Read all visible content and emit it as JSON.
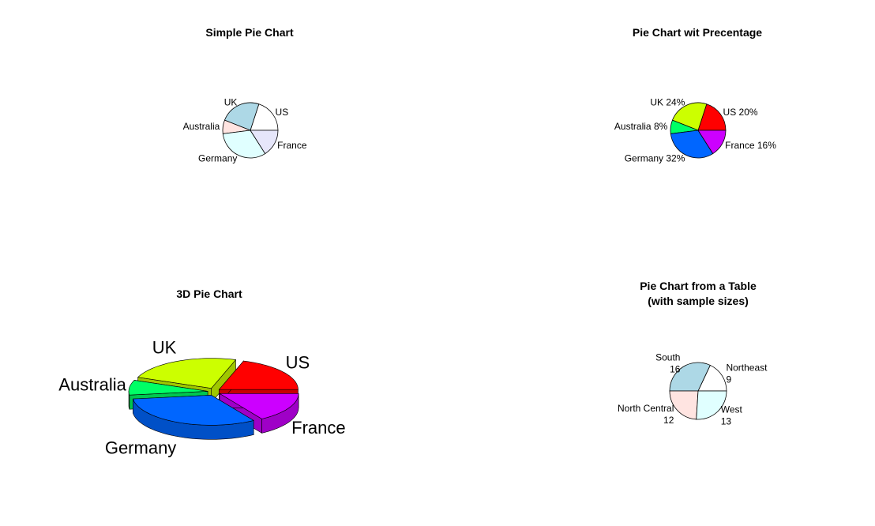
{
  "chart_data": [
    {
      "type": "pie",
      "title": "Simple Pie Chart",
      "slices": [
        {
          "label": "US",
          "value": 5,
          "color": "#ffffff"
        },
        {
          "label": "UK",
          "value": 6,
          "color": "#add8e6"
        },
        {
          "label": "Australia",
          "value": 2,
          "color": "#ffe4e1"
        },
        {
          "label": "Germany",
          "value": 8,
          "color": "#e0ffff"
        },
        {
          "label": "France",
          "value": 4,
          "color": "#e6e6fa"
        }
      ]
    },
    {
      "type": "pie",
      "title": "Pie Chart wit Precentage",
      "slices": [
        {
          "label": "US 20%",
          "value": 5,
          "color": "#ff0000"
        },
        {
          "label": "UK 24%",
          "value": 6,
          "color": "#ccff00"
        },
        {
          "label": "Australia 8%",
          "value": 2,
          "color": "#00ff66"
        },
        {
          "label": "Germany 32%",
          "value": 8,
          "color": "#0066ff"
        },
        {
          "label": "France 16%",
          "value": 4,
          "color": "#cc00ff"
        }
      ]
    },
    {
      "type": "pie",
      "title": "3D Pie Chart",
      "style": "3d-exploded",
      "slices": [
        {
          "label": "US",
          "value": 5,
          "color": "#ff0000"
        },
        {
          "label": "UK",
          "value": 6,
          "color": "#ccff00"
        },
        {
          "label": "Australia",
          "value": 2,
          "color": "#00ff66"
        },
        {
          "label": "Germany",
          "value": 8,
          "color": "#0066ff"
        },
        {
          "label": "France",
          "value": 4,
          "color": "#cc00ff"
        }
      ]
    },
    {
      "type": "pie",
      "title": "Pie Chart from a Table",
      "subtitle": "(with sample sizes)",
      "slices": [
        {
          "label": "Northeast",
          "value": 9,
          "color": "#ffffff"
        },
        {
          "label": "South",
          "value": 16,
          "color": "#add8e6"
        },
        {
          "label": "North Central",
          "value": 12,
          "color": "#ffe4e1"
        },
        {
          "label": "West",
          "value": 13,
          "color": "#e0ffff"
        }
      ]
    }
  ]
}
